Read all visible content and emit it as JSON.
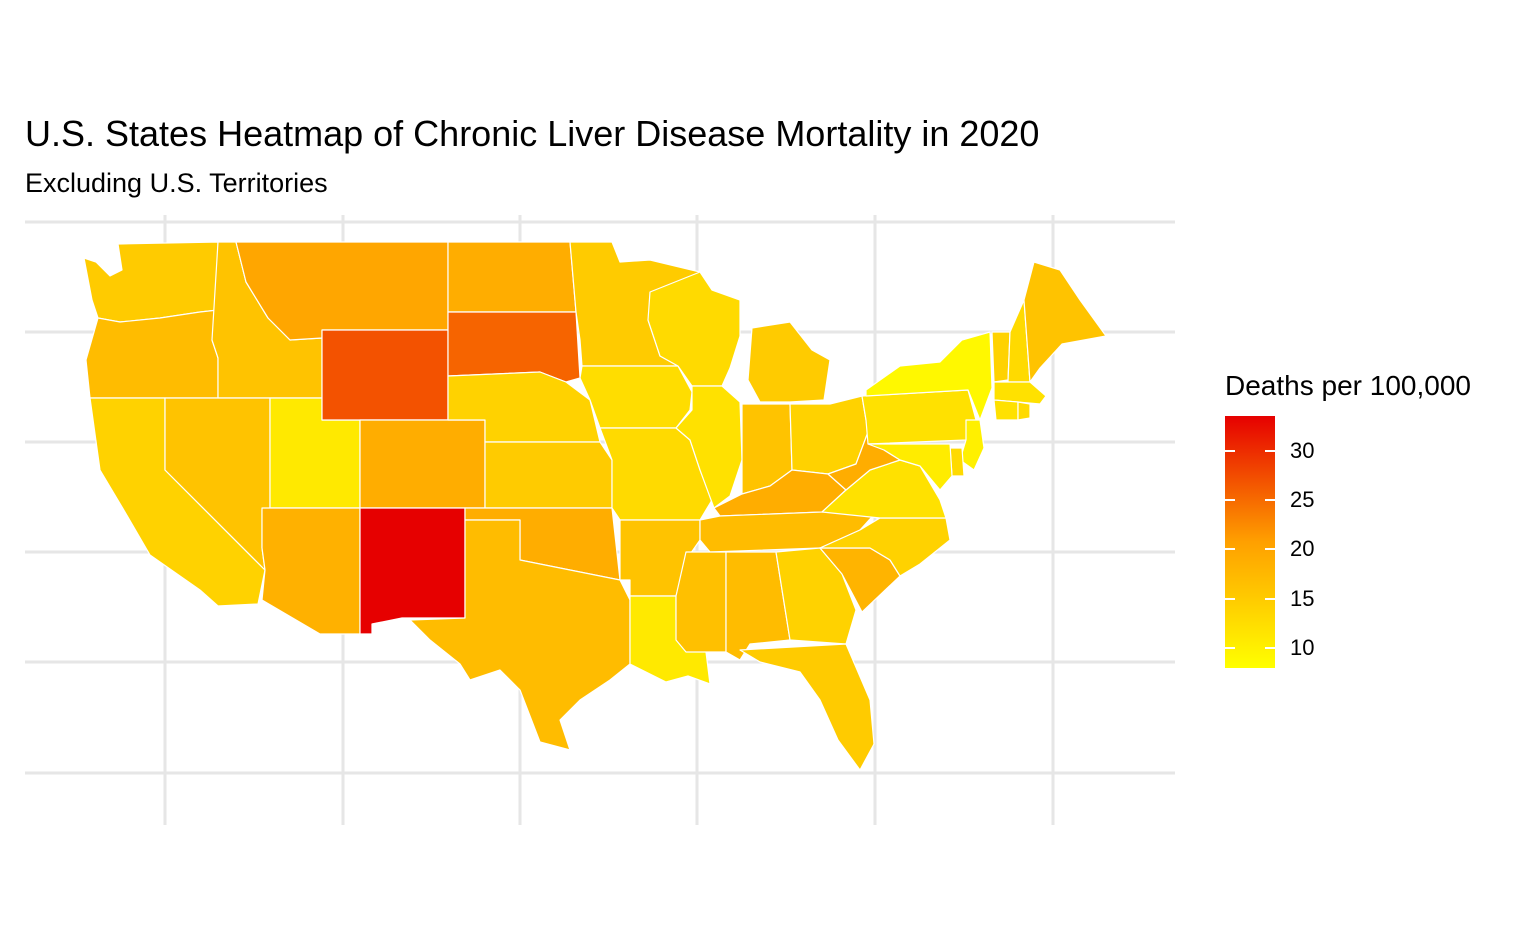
{
  "chart_data": {
    "type": "heatmap",
    "title": "U.S. States Heatmap of Chronic Liver Disease Mortality in 2020",
    "subtitle": "Excluding U.S. Territories",
    "legend": {
      "title": "Deaths per 100,000",
      "ticks": [
        "10",
        "15",
        "20",
        "25",
        "30"
      ],
      "tick_values": [
        10,
        15,
        20,
        25,
        30
      ],
      "range": [
        8,
        33.5
      ],
      "low_color": "#ffff00",
      "high_color": "#e60000",
      "placement": "right"
    },
    "grid": true,
    "regions": [
      {
        "state": "Washington",
        "value": 15.0
      },
      {
        "state": "Oregon",
        "value": 17.0
      },
      {
        "state": "California",
        "value": 14.0
      },
      {
        "state": "Idaho",
        "value": 16.0
      },
      {
        "state": "Nevada",
        "value": 16.0
      },
      {
        "state": "Utah",
        "value": 11.0
      },
      {
        "state": "Arizona",
        "value": 18.5
      },
      {
        "state": "Montana",
        "value": 20.0
      },
      {
        "state": "Wyoming",
        "value": 27.0
      },
      {
        "state": "Colorado",
        "value": 19.0
      },
      {
        "state": "New Mexico",
        "value": 33.5
      },
      {
        "state": "North Dakota",
        "value": 19.0
      },
      {
        "state": "South Dakota",
        "value": 25.5
      },
      {
        "state": "Nebraska",
        "value": 14.0
      },
      {
        "state": "Kansas",
        "value": 15.0
      },
      {
        "state": "Oklahoma",
        "value": 19.0
      },
      {
        "state": "Texas",
        "value": 17.0
      },
      {
        "state": "Minnesota",
        "value": 15.0
      },
      {
        "state": "Iowa",
        "value": 12.5
      },
      {
        "state": "Missouri",
        "value": 13.0
      },
      {
        "state": "Arkansas",
        "value": 16.0
      },
      {
        "state": "Louisiana",
        "value": 11.0
      },
      {
        "state": "Wisconsin",
        "value": 13.0
      },
      {
        "state": "Illinois",
        "value": 12.0
      },
      {
        "state": "Michigan",
        "value": 15.0
      },
      {
        "state": "Indiana",
        "value": 16.0
      },
      {
        "state": "Ohio",
        "value": 14.0
      },
      {
        "state": "Kentucky",
        "value": 19.0
      },
      {
        "state": "Tennessee",
        "value": 17.0
      },
      {
        "state": "Mississippi",
        "value": 16.5
      },
      {
        "state": "Alabama",
        "value": 17.0
      },
      {
        "state": "Georgia",
        "value": 14.0
      },
      {
        "state": "Florida",
        "value": 15.0
      },
      {
        "state": "South Carolina",
        "value": 18.0
      },
      {
        "state": "North Carolina",
        "value": 14.0
      },
      {
        "state": "Virginia",
        "value": 12.0
      },
      {
        "state": "West Virginia",
        "value": 19.0
      },
      {
        "state": "Pennsylvania",
        "value": 12.0
      },
      {
        "state": "New York",
        "value": 9.0
      },
      {
        "state": "New Jersey",
        "value": 10.0
      },
      {
        "state": "Delaware",
        "value": 13.0
      },
      {
        "state": "Maryland",
        "value": 10.5
      },
      {
        "state": "Vermont",
        "value": 14.0
      },
      {
        "state": "New Hampshire",
        "value": 13.0
      },
      {
        "state": "Maine",
        "value": 16.0
      },
      {
        "state": "Massachusetts",
        "value": 12.0
      },
      {
        "state": "Connecticut",
        "value": 12.0
      },
      {
        "state": "Rhode Island",
        "value": 13.0
      }
    ]
  }
}
